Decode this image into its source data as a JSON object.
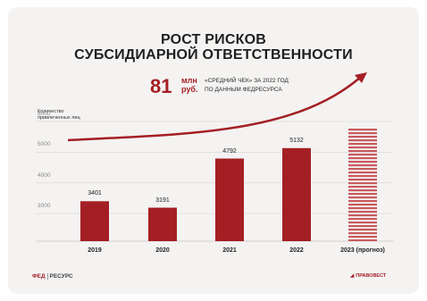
{
  "title_line1": "РОСТ РИСКОВ",
  "title_line2": "СУБСИДИАРНОЙ ОТВЕТСТВЕННОСТИ",
  "stat": {
    "value": "81",
    "unit_line1": "млн",
    "unit_line2": "руб.",
    "desc_line1": "«СРЕДНИЙ ЧЕК» ЗА 2022 ГОД",
    "desc_line2": "ПО ДАННЫМ ФЕДРЕСУРСА"
  },
  "footer": {
    "left_logo_a": "ФЕД",
    "left_logo_b": "РЕСУРС",
    "right_logo": "ПРАВОВЕСТ"
  },
  "colors": {
    "bar": "#a41f24",
    "forecast_stripe": "#c85a5e",
    "accent": "#a41f24"
  },
  "chart_data": {
    "type": "bar",
    "ylabel_line1": "Количество",
    "ylabel_line2": "привлеченных лиц",
    "categories": [
      "2019",
      "2020",
      "2021",
      "2022",
      "2023 (прогноз)"
    ],
    "values": [
      3401,
      3191,
      4792,
      5132,
      5800
    ],
    "value_labels": [
      "3401",
      "3191",
      "4792",
      "5132",
      ""
    ],
    "forecast_index": 4,
    "yticks": [
      3000,
      4000,
      5000,
      6000
    ],
    "ylim": [
      2100,
      6000
    ],
    "grid": true,
    "trend_arrow": true
  }
}
